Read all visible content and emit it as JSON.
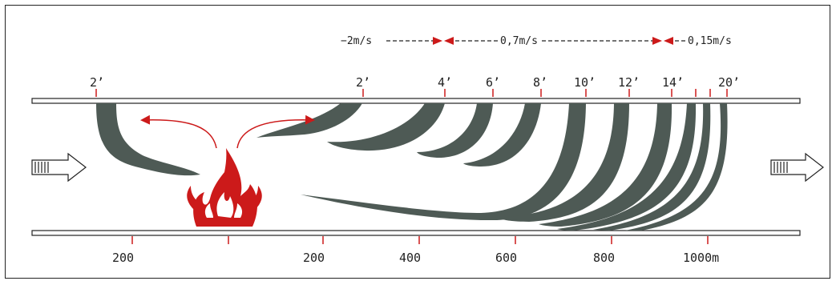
{
  "speed_scale": {
    "fast": "−2m/s",
    "medium": "0,7m/s",
    "slow": "0,15m/s"
  },
  "time_labels": [
    "2’",
    "2’",
    "4’",
    "6’",
    "8’",
    "10’",
    "12’",
    "14’",
    "20’"
  ],
  "distance_labels": [
    "200",
    "200",
    "400",
    "600",
    "800",
    "1000m"
  ],
  "colors": {
    "smoke": "#4e5a55",
    "fire": "#cc1a1a",
    "marker": "#cc1a1a",
    "outline": "#222222"
  },
  "icons": {
    "fire": "fire-icon",
    "airflow_in": "airflow-arrow-icon",
    "airflow_out": "airflow-arrow-icon"
  }
}
